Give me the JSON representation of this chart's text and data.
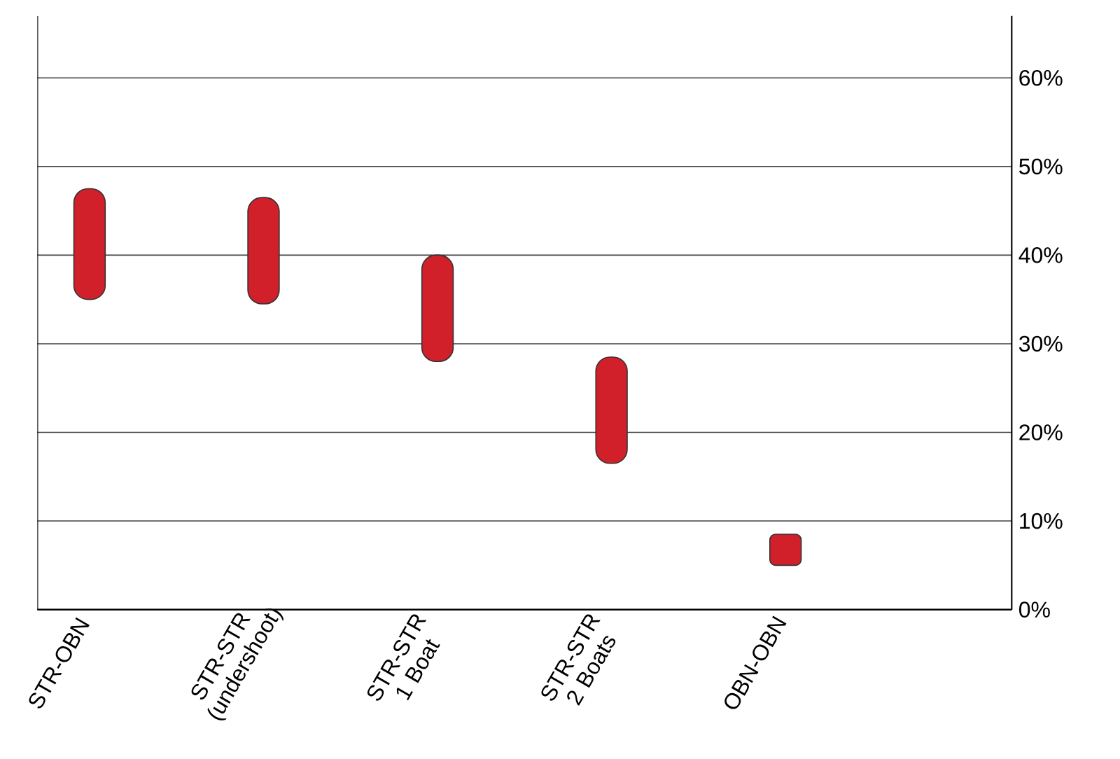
{
  "chart_data": {
    "type": "bar",
    "categories": [
      "STR-OBN",
      "STR-STR (undershoot)",
      "STR-STR 1 Boat",
      "STR-STR 2 Boats",
      "OBN-OBN"
    ],
    "base": [
      35,
      34.5,
      28,
      16.5,
      5
    ],
    "values": [
      12.5,
      12,
      12,
      12,
      3.5
    ],
    "color": "#d2202a",
    "ylim": [
      0,
      67
    ],
    "yticks": [
      {
        "value": 0,
        "label": "0%"
      },
      {
        "value": 10,
        "label": "10%"
      },
      {
        "value": 20,
        "label": "20%"
      },
      {
        "value": 30,
        "label": "30%"
      },
      {
        "value": 40,
        "label": "40%"
      },
      {
        "value": 50,
        "label": "50%"
      },
      {
        "value": 60,
        "label": "60%"
      }
    ],
    "grid": "y"
  }
}
